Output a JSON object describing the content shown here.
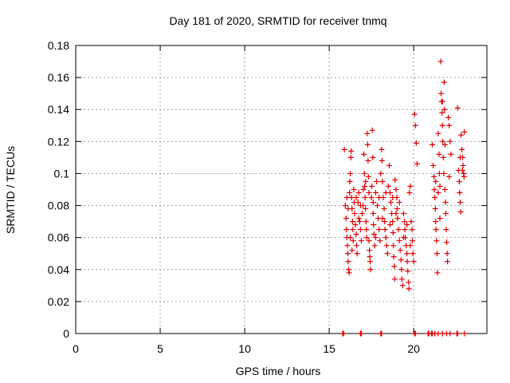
{
  "chart_data": {
    "type": "scatter",
    "title": "Day 181 of 2020, SRMTID for receiver tnmq",
    "xlabel": "GPS time / hours",
    "ylabel": "SRMTID / TECUs",
    "xlim": [
      0,
      24.33
    ],
    "ylim": [
      0,
      0.18
    ],
    "xticks": [
      0,
      5,
      10,
      15,
      20
    ],
    "xtick_labels": [
      "0",
      "5",
      "10",
      "15",
      "20"
    ],
    "yticks": [
      0,
      0.02,
      0.04,
      0.06,
      0.08,
      0.1,
      0.12,
      0.14,
      0.16,
      0.18
    ],
    "ytick_labels": [
      "0",
      "0.02",
      "0.04",
      "0.06",
      "0.08",
      "0.1",
      "0.12",
      "0.14",
      "0.16",
      "0.18"
    ],
    "grid": true,
    "marker": "+",
    "color": "#dd0000",
    "series": [
      {
        "name": "SRMTID",
        "points": [
          [
            15.9,
            0.115
          ],
          [
            15.95,
            0.08
          ],
          [
            16.0,
            0.072
          ],
          [
            16.02,
            0.065
          ],
          [
            16.05,
            0.06
          ],
          [
            16.08,
            0.055
          ],
          [
            16.1,
            0.05
          ],
          [
            16.12,
            0.045
          ],
          [
            16.15,
            0.04
          ],
          [
            16.18,
            0.038
          ],
          [
            16.2,
            0.088
          ],
          [
            16.22,
            0.095
          ],
          [
            16.25,
            0.1
          ],
          [
            16.28,
            0.11
          ],
          [
            16.3,
            0.114
          ],
          [
            16.32,
            0.085
          ],
          [
            16.35,
            0.078
          ],
          [
            16.38,
            0.07
          ],
          [
            16.4,
            0.065
          ],
          [
            16.42,
            0.058
          ],
          [
            16.45,
            0.09
          ],
          [
            16.48,
            0.082
          ],
          [
            16.5,
            0.075
          ],
          [
            16.55,
            0.068
          ],
          [
            16.6,
            0.062
          ],
          [
            16.62,
            0.055
          ],
          [
            16.65,
            0.05
          ],
          [
            16.7,
            0.082
          ],
          [
            16.75,
            0.088
          ],
          [
            16.8,
            0.07
          ],
          [
            16.85,
            0.065
          ],
          [
            16.9,
            0.058
          ],
          [
            16.95,
            0.075
          ],
          [
            17.0,
            0.08
          ],
          [
            17.02,
            0.09
          ],
          [
            17.05,
            0.112
          ],
          [
            17.08,
            0.1
          ],
          [
            17.1,
            0.092
          ],
          [
            17.12,
            0.085
          ],
          [
            17.15,
            0.078
          ],
          [
            17.18,
            0.07
          ],
          [
            17.2,
            0.065
          ],
          [
            17.22,
            0.06
          ],
          [
            17.25,
            0.125
          ],
          [
            17.28,
            0.118
          ],
          [
            17.3,
            0.108
          ],
          [
            17.32,
            0.098
          ],
          [
            17.35,
            0.058
          ],
          [
            17.38,
            0.052
          ],
          [
            17.4,
            0.048
          ],
          [
            17.42,
            0.045
          ],
          [
            17.45,
            0.04
          ],
          [
            17.5,
            0.085
          ],
          [
            17.52,
            0.092
          ],
          [
            17.55,
            0.127
          ],
          [
            17.58,
            0.11
          ],
          [
            17.6,
            0.075
          ],
          [
            17.62,
            0.068
          ],
          [
            17.65,
            0.062
          ],
          [
            17.7,
            0.055
          ],
          [
            17.75,
            0.088
          ],
          [
            17.8,
            0.095
          ],
          [
            17.85,
            0.08
          ],
          [
            17.9,
            0.072
          ],
          [
            17.95,
            0.065
          ],
          [
            18.0,
            0.058
          ],
          [
            18.05,
            0.1
          ],
          [
            18.1,
            0.115
          ],
          [
            18.12,
            0.108
          ],
          [
            18.15,
            0.095
          ],
          [
            18.2,
            0.085
          ],
          [
            18.25,
            0.078
          ],
          [
            18.28,
            0.07
          ],
          [
            18.3,
            0.065
          ],
          [
            18.35,
            0.06
          ],
          [
            18.4,
            0.055
          ],
          [
            18.45,
            0.05
          ],
          [
            18.5,
            0.092
          ],
          [
            18.55,
            0.105
          ],
          [
            18.6,
            0.088
          ],
          [
            18.65,
            0.082
          ],
          [
            18.7,
            0.075
          ],
          [
            18.75,
            0.07
          ],
          [
            18.78,
            0.063
          ],
          [
            18.8,
            0.055
          ],
          [
            18.82,
            0.048
          ],
          [
            18.85,
            0.042
          ],
          [
            18.88,
            0.034
          ],
          [
            18.9,
            0.096
          ],
          [
            18.95,
            0.09
          ],
          [
            19.0,
            0.085
          ],
          [
            19.02,
            0.078
          ],
          [
            19.05,
            0.072
          ],
          [
            19.1,
            0.065
          ],
          [
            19.15,
            0.058
          ],
          [
            19.2,
            0.052
          ],
          [
            19.25,
            0.046
          ],
          [
            19.28,
            0.04
          ],
          [
            19.3,
            0.034
          ],
          [
            19.35,
            0.03
          ],
          [
            19.4,
            0.075
          ],
          [
            19.45,
            0.07
          ],
          [
            19.48,
            0.065
          ],
          [
            19.5,
            0.06
          ],
          [
            19.55,
            0.055
          ],
          [
            19.6,
            0.05
          ],
          [
            19.62,
            0.045
          ],
          [
            19.65,
            0.039
          ],
          [
            19.7,
            0.032
          ],
          [
            19.72,
            0.028
          ],
          [
            19.75,
            0.088
          ],
          [
            19.8,
            0.092
          ],
          [
            19.85,
            0.07
          ],
          [
            19.9,
            0.065
          ],
          [
            19.92,
            0.058
          ],
          [
            19.95,
            0.05
          ],
          [
            20.0,
            0.045
          ],
          [
            20.05,
            0.137
          ],
          [
            20.1,
            0.13
          ],
          [
            20.15,
            0.119
          ],
          [
            20.2,
            0.106
          ],
          [
            21.1,
            0.118
          ],
          [
            21.15,
            0.105
          ],
          [
            21.2,
            0.098
          ],
          [
            21.22,
            0.09
          ],
          [
            21.25,
            0.085
          ],
          [
            21.28,
            0.078
          ],
          [
            21.3,
            0.07
          ],
          [
            21.32,
            0.065
          ],
          [
            21.35,
            0.058
          ],
          [
            21.38,
            0.05
          ],
          [
            21.4,
            0.038
          ],
          [
            21.45,
            0.125
          ],
          [
            21.5,
            0.112
          ],
          [
            21.52,
            0.1
          ],
          [
            21.55,
            0.092
          ],
          [
            21.6,
            0.17
          ],
          [
            21.62,
            0.15
          ],
          [
            21.65,
            0.145
          ],
          [
            21.68,
            0.138
          ],
          [
            21.7,
            0.13
          ],
          [
            21.72,
            0.12
          ],
          [
            21.75,
            0.11
          ],
          [
            21.78,
            0.1
          ],
          [
            21.8,
            0.157
          ],
          [
            21.82,
            0.14
          ],
          [
            21.85,
            0.09
          ],
          [
            21.88,
            0.082
          ],
          [
            21.9,
            0.075
          ],
          [
            21.92,
            0.065
          ],
          [
            21.95,
            0.057
          ],
          [
            21.98,
            0.05
          ],
          [
            22.0,
            0.045
          ],
          [
            22.05,
            0.135
          ],
          [
            22.1,
            0.13
          ],
          [
            22.15,
            0.12
          ],
          [
            22.2,
            0.112
          ],
          [
            22.6,
            0.141
          ],
          [
            22.65,
            0.102
          ],
          [
            22.7,
            0.095
          ],
          [
            22.72,
            0.088
          ],
          [
            22.75,
            0.082
          ],
          [
            22.78,
            0.076
          ],
          [
            22.8,
            0.124
          ],
          [
            22.85,
            0.115
          ],
          [
            22.9,
            0.11
          ],
          [
            22.92,
            0.105
          ],
          [
            22.95,
            0.1
          ],
          [
            22.98,
            0.098
          ],
          [
            23.0,
            0.126
          ],
          [
            16.05,
            0.085
          ],
          [
            16.12,
            0.078
          ],
          [
            16.25,
            0.06
          ],
          [
            16.35,
            0.052
          ],
          [
            16.6,
            0.085
          ],
          [
            16.75,
            0.072
          ],
          [
            16.85,
            0.08
          ],
          [
            17.15,
            0.095
          ],
          [
            17.35,
            0.088
          ],
          [
            17.6,
            0.082
          ],
          [
            17.75,
            0.06
          ],
          [
            17.95,
            0.085
          ],
          [
            18.15,
            0.072
          ],
          [
            18.35,
            0.088
          ],
          [
            18.6,
            0.068
          ],
          [
            18.75,
            0.085
          ],
          [
            18.95,
            0.075
          ],
          [
            19.15,
            0.082
          ],
          [
            19.4,
            0.06
          ],
          [
            19.6,
            0.068
          ],
          [
            19.8,
            0.055
          ],
          [
            21.3,
            0.095
          ],
          [
            21.45,
            0.088
          ],
          [
            21.55,
            0.072
          ],
          [
            21.7,
            0.145
          ],
          [
            21.85,
            0.118
          ],
          [
            22.1,
            0.098
          ],
          [
            22.75,
            0.11
          ],
          [
            22.88,
            0.102
          ]
        ]
      }
    ],
    "zero_markers_x": [
      15.8,
      15.85,
      16.85,
      16.9,
      18.05,
      18.1,
      20.05,
      20.1,
      20.85,
      20.9,
      21.05,
      21.1,
      21.25,
      21.45,
      21.7,
      21.95,
      22.15,
      22.55,
      22.6,
      23.0
    ]
  }
}
